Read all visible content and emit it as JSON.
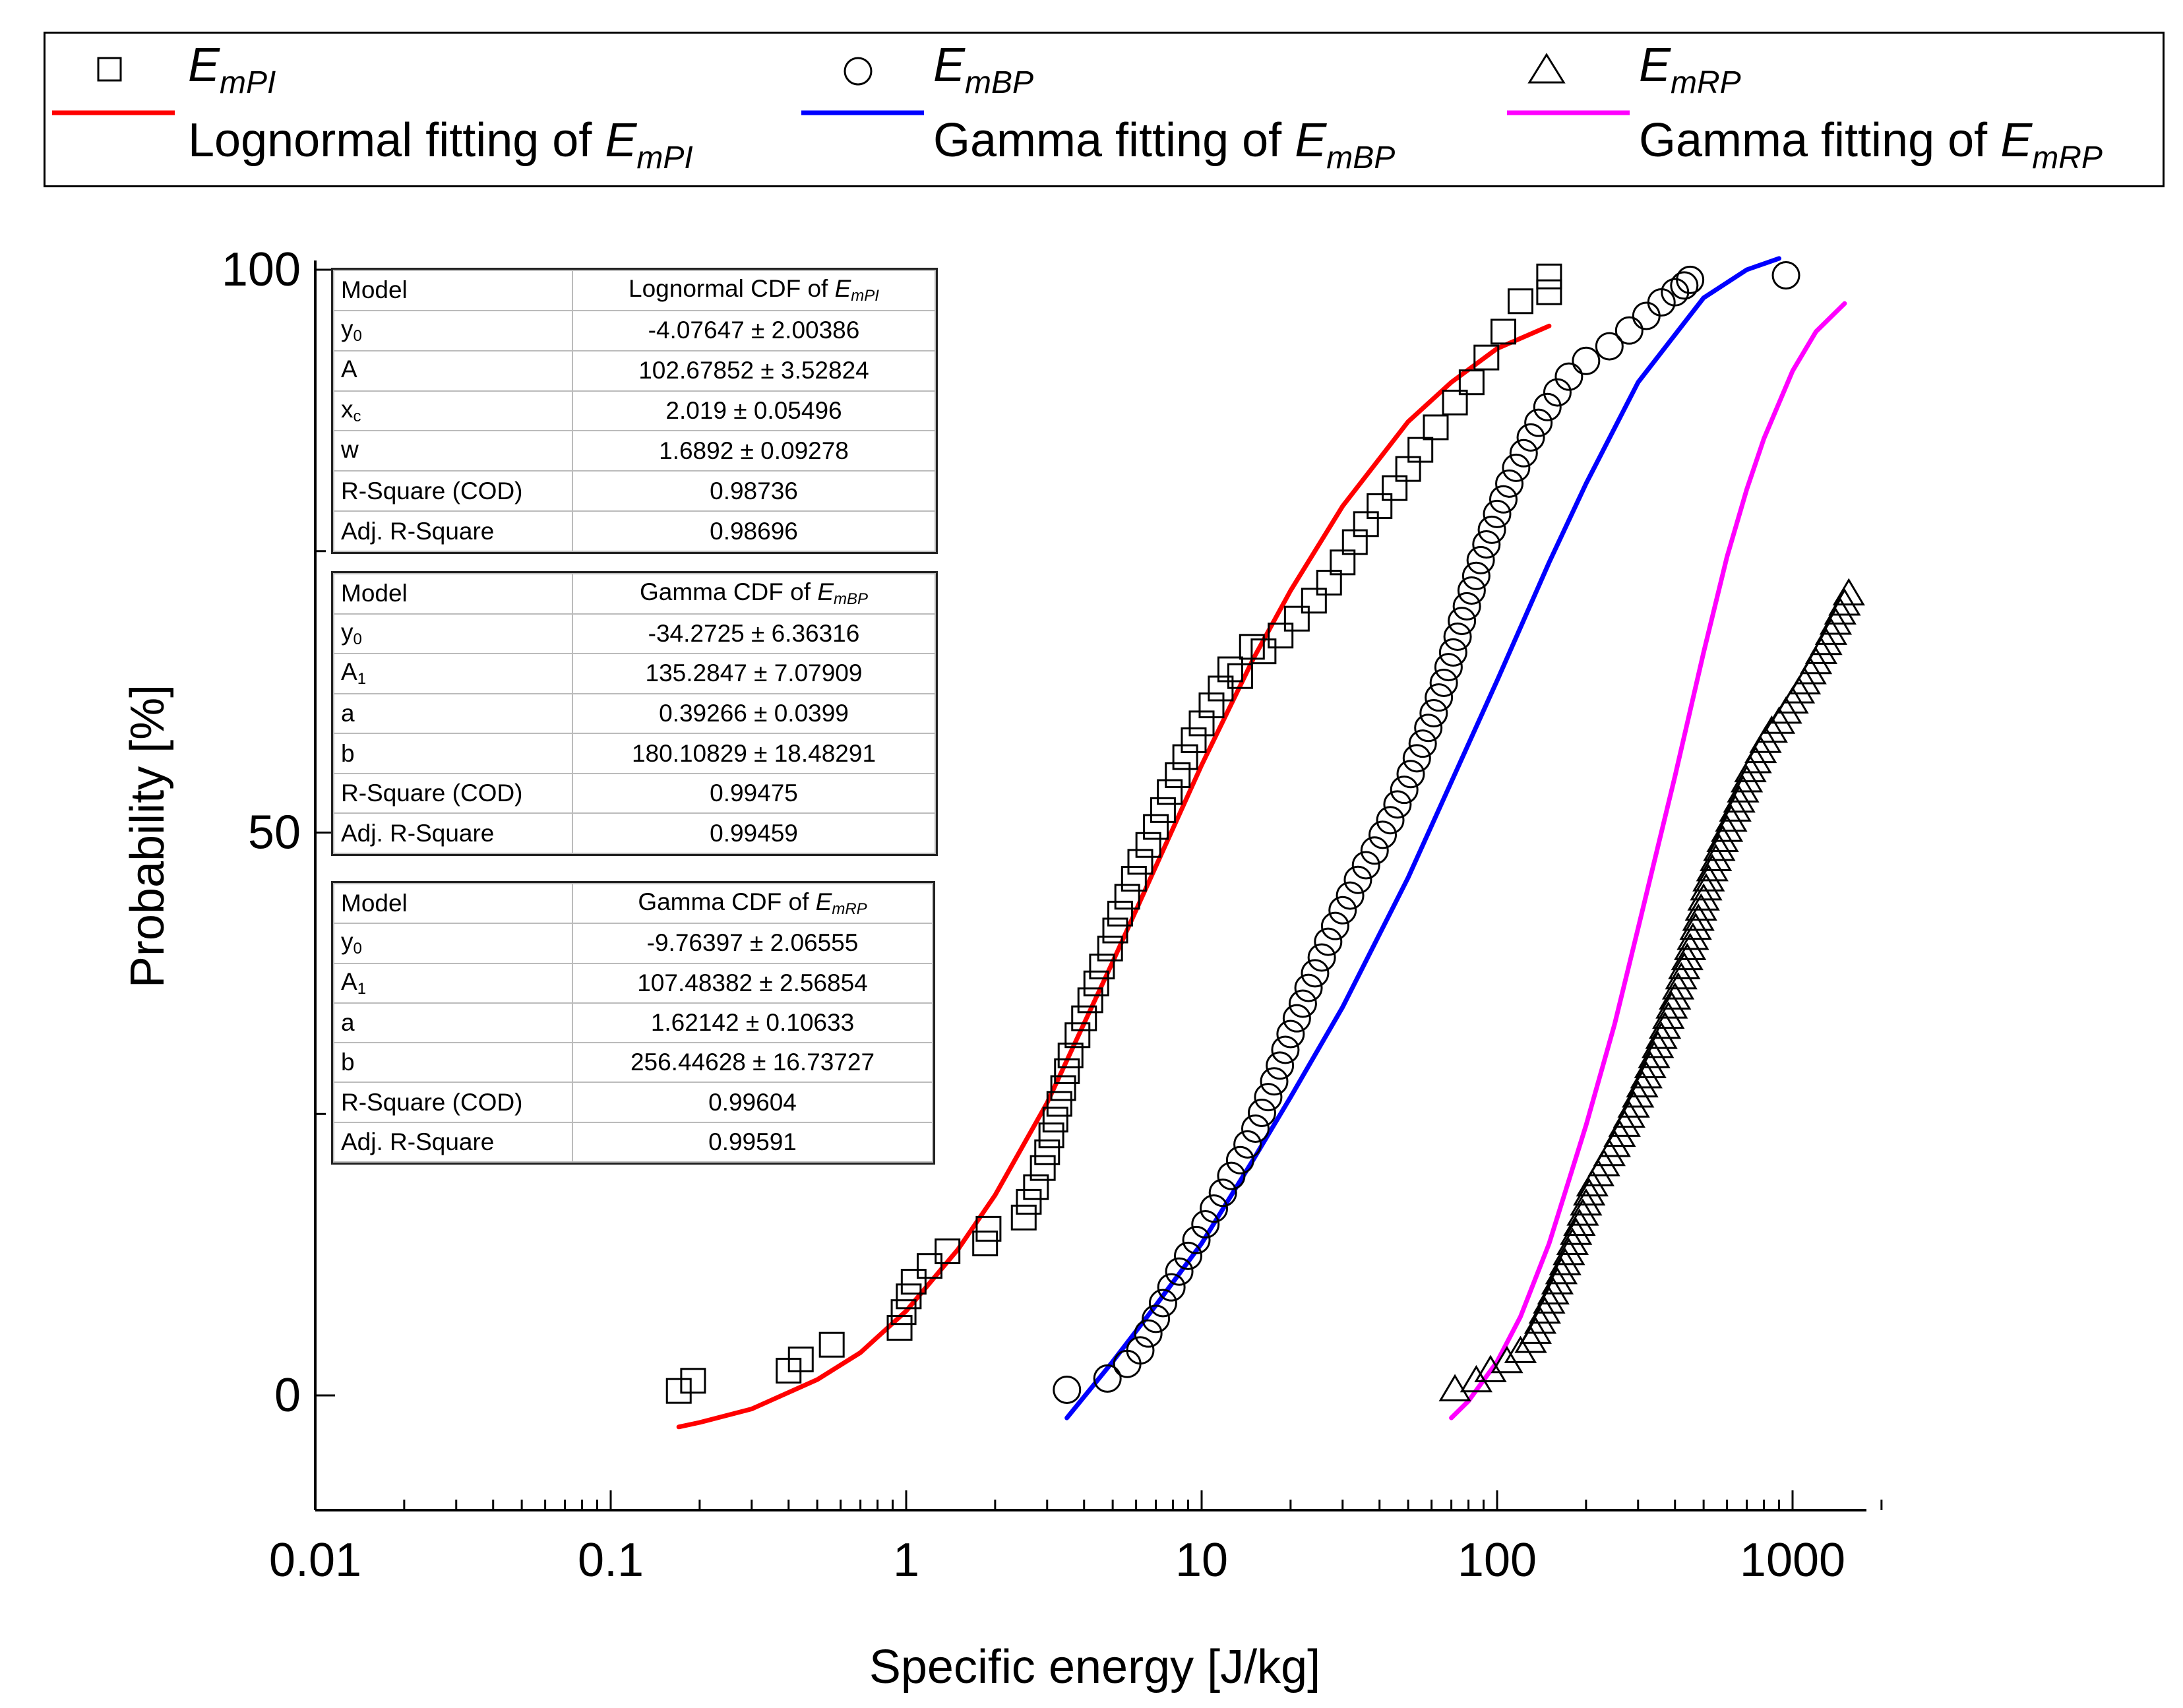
{
  "legend": {
    "items": [
      {
        "symbol": "square-marker-icon",
        "prefix": "",
        "E": "E",
        "sub": "mPI"
      },
      {
        "symbol": "circle-marker-icon",
        "prefix": "",
        "E": "E",
        "sub": "mBP"
      },
      {
        "symbol": "triangle-marker-icon",
        "prefix": "",
        "E": "E",
        "sub": "mRP"
      },
      {
        "symbol": "red-line-icon",
        "prefix": "Lognormal fitting of ",
        "E": "E",
        "sub": "mPI"
      },
      {
        "symbol": "blue-line-icon",
        "prefix": "Gamma fitting of ",
        "E": "E",
        "sub": "mBP"
      },
      {
        "symbol": "magenta-line-icon",
        "prefix": "Gamma fitting of ",
        "E": "E",
        "sub": "mRP"
      }
    ]
  },
  "colors": {
    "lognormal": "#ff0000",
    "gamma_bp": "#0000ff",
    "gamma_rp": "#ff00ff",
    "marker": "#000000"
  },
  "tables": [
    {
      "header_model": "Model",
      "header_prefix": "Lognormal CDF of ",
      "header_E": "E",
      "header_sub": "mPI",
      "rows": [
        {
          "p": "y",
          "psub": "0",
          "v": "-4.07647 ± 2.00386"
        },
        {
          "p": "A",
          "psub": "",
          "v": "102.67852 ± 3.52824"
        },
        {
          "p": "x",
          "psub": "c",
          "v": "2.019 ± 0.05496"
        },
        {
          "p": "w",
          "psub": "",
          "v": "1.6892 ± 0.09278"
        },
        {
          "p": "R-Square (COD)",
          "psub": "",
          "v": "0.98736"
        },
        {
          "p": "Adj. R-Square",
          "psub": "",
          "v": "0.98696"
        }
      ]
    },
    {
      "header_model": "Model",
      "header_prefix": "Gamma CDF of ",
      "header_E": "E",
      "header_sub": "mBP",
      "rows": [
        {
          "p": "y",
          "psub": "0",
          "v": "-34.2725 ± 6.36316"
        },
        {
          "p": "A",
          "psub": "1",
          "v": "135.2847 ± 7.07909"
        },
        {
          "p": "a",
          "psub": "",
          "v": "0.39266 ± 0.0399"
        },
        {
          "p": "b",
          "psub": "",
          "v": "180.10829 ± 18.48291"
        },
        {
          "p": "R-Square (COD)",
          "psub": "",
          "v": "0.99475"
        },
        {
          "p": "Adj. R-Square",
          "psub": "",
          "v": "0.99459"
        }
      ]
    },
    {
      "header_model": "Model",
      "header_prefix": "Gamma CDF of ",
      "header_E": "E",
      "header_sub": "mRP",
      "rows": [
        {
          "p": "y",
          "psub": "0",
          "v": "-9.76397 ± 2.06555"
        },
        {
          "p": "A",
          "psub": "1",
          "v": "107.48382 ± 2.56854"
        },
        {
          "p": "a",
          "psub": "",
          "v": "1.62142 ± 0.10633"
        },
        {
          "p": "b",
          "psub": "",
          "v": "256.44628 ± 16.73727"
        },
        {
          "p": "R-Square (COD)",
          "psub": "",
          "v": "0.99604"
        },
        {
          "p": "Adj. R-Square",
          "psub": "",
          "v": "0.99591"
        }
      ]
    }
  ],
  "chart_data": {
    "type": "scatter",
    "title": "",
    "xlabel": "Specific energy [J/kg]",
    "ylabel": "Probability [%]",
    "xscale": "log",
    "xlim": [
      0.01,
      2000
    ],
    "ylim": [
      -10,
      101
    ],
    "xticks": [
      0.01,
      0.1,
      1,
      10,
      100,
      1000
    ],
    "xtick_labels": [
      "0.01",
      "0.1",
      "1",
      "10",
      "100",
      "1000"
    ],
    "yticks": [
      0,
      50,
      100
    ],
    "ytick_labels": [
      "0",
      "50",
      "100"
    ],
    "legend_position": "top (outside)",
    "series": [
      {
        "name": "EmPI",
        "marker": "square",
        "x": [
          0.17,
          0.19,
          0.4,
          0.44,
          0.56,
          0.95,
          0.98,
          1.02,
          1.06,
          1.2,
          1.38,
          1.85,
          1.9,
          2.5,
          2.6,
          2.75,
          2.9,
          3.0,
          3.1,
          3.2,
          3.3,
          3.4,
          3.5,
          3.6,
          3.8,
          4.0,
          4.2,
          4.4,
          4.6,
          4.9,
          5.1,
          5.3,
          5.6,
          5.9,
          6.2,
          6.6,
          7.0,
          7.4,
          7.8,
          8.3,
          8.8,
          9.4,
          10.0,
          10.8,
          11.6,
          12.5,
          13.5,
          14.8,
          16.2,
          18.5,
          21.0,
          24.0,
          27.0,
          30.0,
          33.0,
          36.0,
          40.0,
          45.0,
          50.0,
          55.0,
          62.0,
          72.0,
          82.0,
          92.0,
          105.0,
          120.0,
          150.0,
          150.0
        ],
        "y": [
          0.4,
          1.3,
          2.2,
          3.2,
          4.5,
          6.0,
          7.4,
          8.8,
          10.1,
          11.5,
          12.8,
          13.5,
          14.8,
          15.8,
          17.2,
          18.5,
          20.2,
          21.6,
          23.1,
          24.5,
          25.9,
          27.3,
          28.8,
          30.2,
          32.0,
          33.5,
          35.1,
          36.6,
          38.1,
          39.7,
          41.3,
          42.8,
          44.3,
          45.9,
          47.4,
          48.9,
          50.5,
          52.0,
          53.6,
          55.1,
          56.7,
          58.2,
          59.7,
          61.3,
          62.8,
          64.5,
          63.9,
          66.5,
          66.1,
          67.5,
          69.0,
          70.6,
          72.2,
          74.0,
          75.8,
          77.4,
          79.0,
          80.6,
          82.3,
          84.0,
          86.0,
          88.2,
          90.0,
          92.2,
          94.5,
          97.2,
          98.0,
          99.4
        ]
      },
      {
        "name": "EmBP",
        "marker": "circle",
        "x": [
          3.5,
          4.8,
          5.6,
          6.2,
          6.6,
          7.0,
          7.4,
          7.9,
          8.4,
          9.0,
          9.6,
          10.3,
          11.0,
          11.8,
          12.6,
          13.5,
          14.3,
          15.2,
          16.0,
          16.8,
          17.6,
          18.4,
          19.2,
          20.0,
          21.0,
          22.0,
          23.0,
          24.2,
          25.5,
          26.8,
          28.3,
          30.0,
          31.8,
          33.8,
          36.0,
          38.5,
          41.0,
          43.5,
          46.0,
          48.5,
          51.0,
          53.5,
          56.0,
          58.5,
          61.0,
          63.5,
          66.0,
          68.5,
          71.0,
          73.5,
          76.0,
          79.0,
          82.0,
          85.0,
          88.0,
          92.0,
          96.0,
          100.0,
          105.0,
          110.0,
          116.0,
          123.0,
          130.0,
          138.0,
          148.0,
          160.0,
          175.0,
          200.0,
          240.0,
          280.0,
          320.0,
          360.0,
          400.0,
          430.0,
          450.0,
          950.0
        ],
        "y": [
          0.5,
          1.5,
          2.8,
          4.0,
          5.5,
          6.8,
          8.2,
          9.6,
          11.0,
          12.4,
          13.8,
          15.2,
          16.6,
          18.0,
          19.5,
          20.9,
          22.3,
          23.7,
          25.1,
          26.5,
          27.9,
          29.3,
          30.7,
          32.1,
          33.5,
          34.8,
          36.2,
          37.5,
          38.9,
          40.3,
          41.7,
          43.1,
          44.4,
          45.8,
          47.1,
          48.4,
          49.8,
          51.1,
          52.5,
          53.8,
          55.2,
          56.6,
          57.9,
          59.3,
          60.6,
          62.0,
          63.3,
          64.7,
          66.0,
          67.4,
          68.8,
          70.1,
          71.5,
          72.8,
          74.2,
          75.6,
          76.9,
          78.3,
          79.6,
          81.0,
          82.4,
          83.7,
          85.1,
          86.4,
          87.8,
          89.1,
          90.5,
          91.9,
          93.2,
          94.6,
          95.9,
          97.1,
          98.0,
          98.6,
          99.1,
          99.5
        ]
      },
      {
        "name": "EmRP",
        "marker": "triangle",
        "x": [
          72,
          85,
          95,
          108,
          120,
          130,
          135,
          140,
          145,
          150,
          155,
          160,
          165,
          170,
          175,
          180,
          185,
          190,
          195,
          200,
          205,
          210,
          220,
          230,
          240,
          250,
          260,
          270,
          280,
          290,
          300,
          310,
          320,
          330,
          340,
          350,
          360,
          370,
          380,
          390,
          400,
          410,
          420,
          430,
          440,
          450,
          460,
          470,
          480,
          490,
          500,
          510,
          520,
          535,
          550,
          565,
          580,
          600,
          620,
          640,
          660,
          680,
          700,
          720,
          750,
          780,
          810,
          850,
          900,
          950,
          1000,
          1050,
          1100,
          1150,
          1200,
          1250,
          1300,
          1350,
          1400,
          1450,
          1500,
          1550
        ],
        "y": [
          0.5,
          1.3,
          2.2,
          3.0,
          3.9,
          4.8,
          5.6,
          6.5,
          7.4,
          8.3,
          9.1,
          10.0,
          10.9,
          11.7,
          12.6,
          13.5,
          14.4,
          15.2,
          16.1,
          17.0,
          17.9,
          18.7,
          19.6,
          20.5,
          21.4,
          22.2,
          23.1,
          24.0,
          24.8,
          25.7,
          26.6,
          27.5,
          28.3,
          29.2,
          30.1,
          31.0,
          31.8,
          32.7,
          33.6,
          34.5,
          35.3,
          36.2,
          37.1,
          38.0,
          38.8,
          39.7,
          40.6,
          41.5,
          42.3,
          43.2,
          44.1,
          45.0,
          45.8,
          46.7,
          47.6,
          48.5,
          49.3,
          50.2,
          51.1,
          52.0,
          52.8,
          53.7,
          54.6,
          55.5,
          56.3,
          57.2,
          58.1,
          59.0,
          59.8,
          60.7,
          61.6,
          62.5,
          63.3,
          64.2,
          65.1,
          66.0,
          66.8,
          67.7,
          68.6,
          69.5,
          70.3,
          71.2
        ]
      },
      {
        "name": "Lognormal fitting of EmPI",
        "type": "line",
        "color": "#ff0000",
        "x": [
          0.17,
          0.2,
          0.3,
          0.5,
          0.7,
          1.0,
          1.5,
          2.0,
          3.0,
          5.0,
          7.0,
          10.0,
          15.0,
          20.0,
          30.0,
          50.0,
          70.0,
          100.0,
          150.0
        ],
        "y": [
          -2.8,
          -2.4,
          -1.2,
          1.4,
          3.8,
          7.5,
          13.0,
          17.8,
          26.0,
          38.5,
          47.0,
          56.0,
          65.5,
          71.5,
          79.0,
          86.5,
          90.0,
          93.0,
          95.0
        ]
      },
      {
        "name": "Gamma fitting of EmBP",
        "type": "line",
        "color": "#0000ff",
        "x": [
          3.5,
          5.0,
          7.0,
          10.0,
          15.0,
          20.0,
          30.0,
          50.0,
          70.0,
          100.0,
          150.0,
          200.0,
          300.0,
          500.0,
          700.0,
          900.0
        ],
        "y": [
          -2.0,
          3.0,
          8.0,
          13.5,
          21.0,
          26.5,
          34.5,
          46.0,
          54.5,
          63.5,
          74.0,
          81.0,
          90.0,
          97.5,
          100.0,
          101.0
        ]
      },
      {
        "name": "Gamma fitting of EmRP",
        "type": "line",
        "color": "#ff00ff",
        "x": [
          70,
          80,
          100,
          120,
          150,
          200,
          250,
          300,
          400,
          500,
          600,
          700,
          800,
          1000,
          1200,
          1500
        ],
        "y": [
          -2.0,
          -0.5,
          3.0,
          7.0,
          13.5,
          24.0,
          33.0,
          41.5,
          55.0,
          66.0,
          74.5,
          80.5,
          85.0,
          91.0,
          94.5,
          97.0
        ]
      }
    ]
  }
}
